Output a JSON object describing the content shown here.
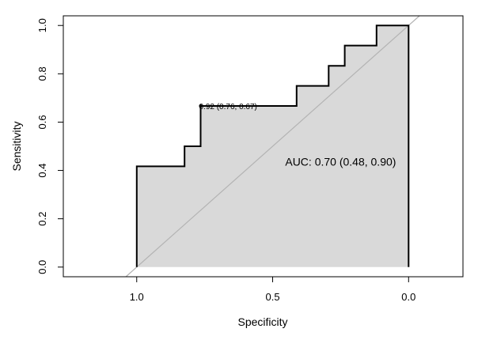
{
  "chart_data": {
    "type": "line",
    "title": "",
    "xlabel": "Specificity",
    "ylabel": "Sensitivity",
    "xlim": [
      1.27,
      -0.2
    ],
    "ylim": [
      -0.04,
      1.04
    ],
    "x_axis_reversed": true,
    "x_ticks": [
      1.0,
      0.5,
      0.0
    ],
    "x_tick_labels": [
      "1.0",
      "0.5",
      "0.0"
    ],
    "y_ticks": [
      0.0,
      0.2,
      0.4,
      0.6,
      0.8,
      1.0
    ],
    "y_tick_labels": [
      "0.0",
      "0.2",
      "0.4",
      "0.6",
      "0.8",
      "1.0"
    ],
    "grid": false,
    "legend": "none",
    "auc_fill": true,
    "series": [
      {
        "points": [
          [
            1.0,
            0.0
          ],
          [
            1.0,
            0.417
          ],
          [
            0.824,
            0.417
          ],
          [
            0.824,
            0.5
          ],
          [
            0.765,
            0.5
          ],
          [
            0.765,
            0.667
          ],
          [
            0.412,
            0.667
          ],
          [
            0.412,
            0.75
          ],
          [
            0.294,
            0.75
          ],
          [
            0.294,
            0.833
          ],
          [
            0.235,
            0.833
          ],
          [
            0.235,
            0.917
          ],
          [
            0.118,
            0.917
          ],
          [
            0.118,
            1.0
          ],
          [
            0.0,
            1.0
          ],
          [
            0.0,
            0.0
          ]
        ]
      }
    ],
    "diagonal": {
      "from": [
        1.0,
        0.0
      ],
      "to": [
        0.0,
        1.0
      ]
    },
    "annotations": [
      {
        "id": "auc",
        "text": "AUC: 0.70 (0.48, 0.90)",
        "x": 0.25,
        "y": 0.42
      },
      {
        "id": "threshold",
        "text": "0.92 (0.76, 0.67)",
        "x": 0.765,
        "y": 0.667
      }
    ],
    "colors": {
      "curve": "#000000",
      "fill": "#d9d9d9",
      "diagonal": "#b3b3b3",
      "frame": "#000000"
    }
  }
}
